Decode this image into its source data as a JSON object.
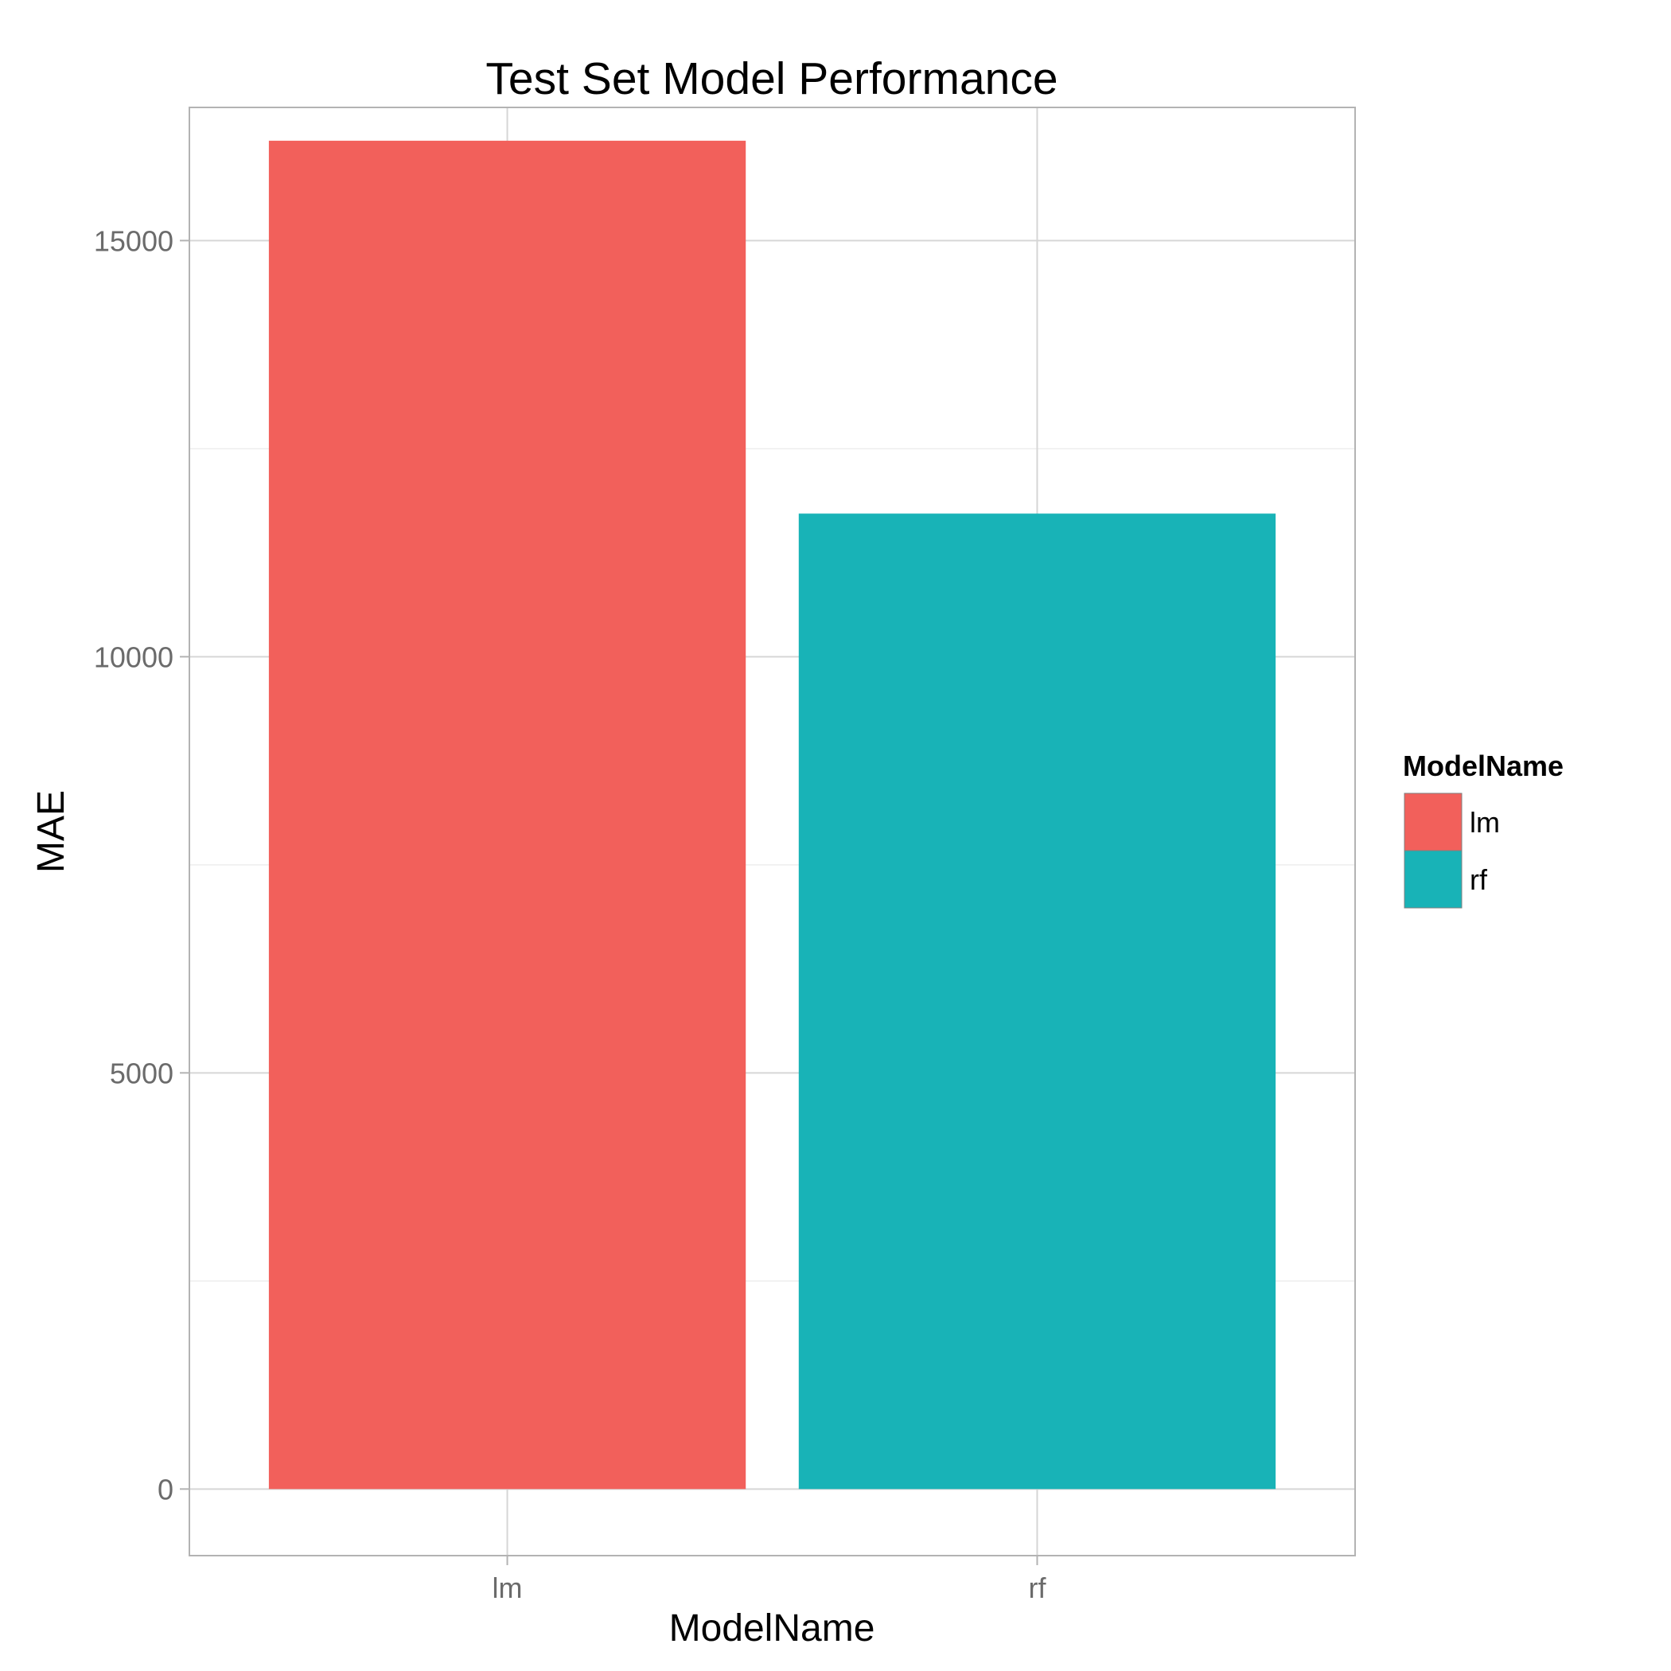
{
  "chart_data": {
    "type": "bar",
    "title": "Test Set Model Performance",
    "xlabel": "ModelName",
    "ylabel": "MAE",
    "categories": [
      "lm",
      "rf"
    ],
    "values": [
      16200,
      11720
    ],
    "colors": [
      "#F2605B",
      "#18B3B7"
    ],
    "ylim": [
      -800,
      16600
    ],
    "yticks": [
      0,
      5000,
      10000,
      15000
    ],
    "ytick_labels": [
      "0",
      "5000",
      "10000",
      "15000"
    ],
    "minor_yticks": [
      2500,
      7500,
      12500
    ],
    "grid": true,
    "legend": {
      "title": "ModelName",
      "position": "right",
      "entries": [
        "lm",
        "rf"
      ]
    }
  }
}
